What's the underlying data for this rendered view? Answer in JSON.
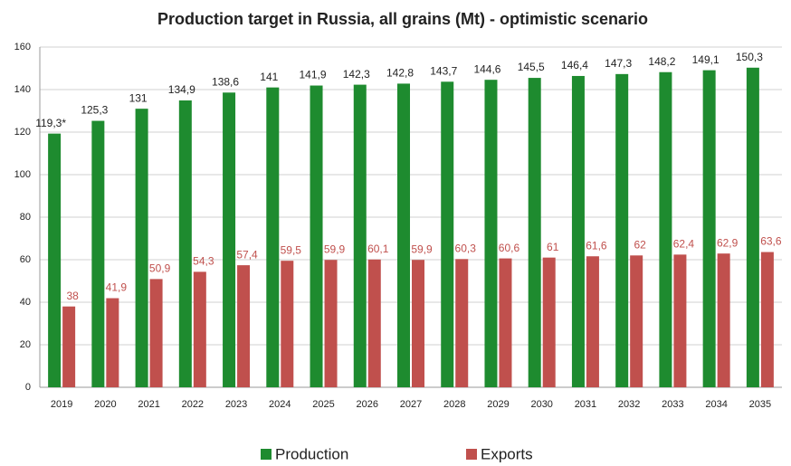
{
  "chart_data": {
    "type": "bar",
    "title": "Production target in Russia, all grains (Mt) - optimistic scenario",
    "categories": [
      "2019",
      "2020",
      "2021",
      "2022",
      "2023",
      "2024",
      "2025",
      "2026",
      "2027",
      "2028",
      "2029",
      "2030",
      "2031",
      "2032",
      "2033",
      "2034",
      "2035"
    ],
    "series": [
      {
        "name": "Production",
        "color": "#1e8b2f",
        "values": [
          119.3,
          125.3,
          131,
          134.9,
          138.6,
          141,
          141.9,
          142.3,
          142.8,
          143.7,
          144.6,
          145.5,
          146.4,
          147.3,
          148.2,
          149.1,
          150.3
        ],
        "value_labels": [
          "119,3*",
          "125,3",
          "131",
          "134,9",
          "138,6",
          "141",
          "141,9",
          "142,3",
          "142,8",
          "143,7",
          "144,6",
          "145,5",
          "146,4",
          "147,3",
          "148,2",
          "149,1",
          "150,3"
        ]
      },
      {
        "name": "Exports",
        "color": "#c0504d",
        "values": [
          38,
          41.9,
          50.9,
          54.3,
          57.4,
          59.5,
          59.9,
          60.1,
          59.9,
          60.3,
          60.6,
          61,
          61.6,
          62,
          62.4,
          62.9,
          63.6
        ],
        "value_labels": [
          "38",
          "41,9",
          "50,9",
          "54,3",
          "57,4",
          "59,5",
          "59,9",
          "60,1",
          "59,9",
          "60,3",
          "60,6",
          "61",
          "61,6",
          "62",
          "62,4",
          "62,9",
          "63,6"
        ]
      }
    ],
    "ylim": [
      0,
      160
    ],
    "yticks": [
      0,
      20,
      40,
      60,
      80,
      100,
      120,
      140,
      160
    ],
    "grid": true,
    "legend": "bottom"
  }
}
